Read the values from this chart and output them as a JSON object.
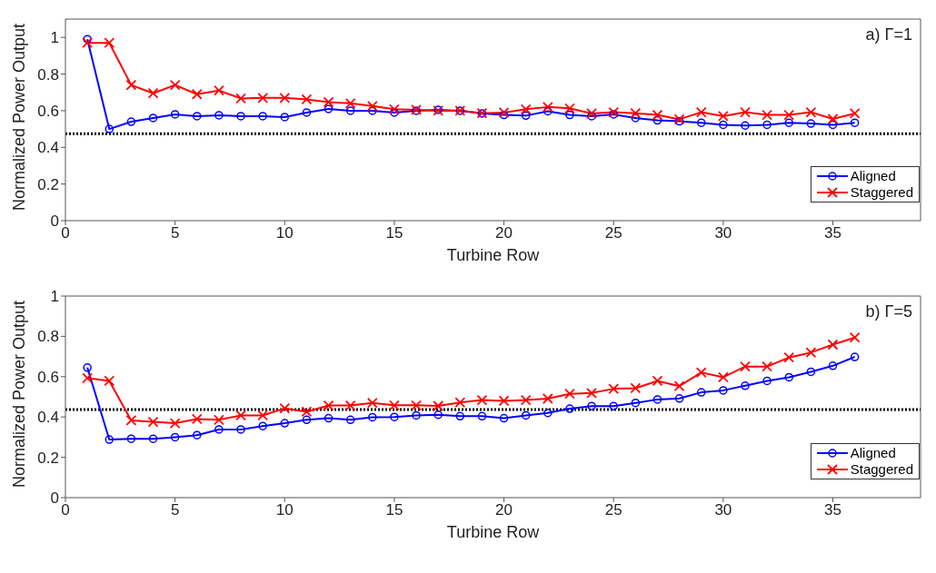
{
  "chart_data": [
    {
      "type": "line",
      "xlabel": "Turbine Row",
      "ylabel": "Normalized Power Output",
      "annotations": [
        "a) Γ=1"
      ],
      "x": [
        1,
        2,
        3,
        4,
        5,
        6,
        7,
        8,
        9,
        10,
        11,
        12,
        13,
        14,
        15,
        16,
        17,
        18,
        19,
        20,
        21,
        22,
        23,
        24,
        25,
        26,
        27,
        28,
        29,
        30,
        31,
        32,
        33,
        34,
        35,
        36
      ],
      "series": [
        {
          "name": "Aligned",
          "color": "#0000ff",
          "marker": "circle",
          "values": [
            0.99,
            0.5,
            0.54,
            0.56,
            0.58,
            0.57,
            0.575,
            0.57,
            0.57,
            0.565,
            0.59,
            0.61,
            0.6,
            0.6,
            0.59,
            0.6,
            0.605,
            0.6,
            0.585,
            0.577,
            0.573,
            0.597,
            0.577,
            0.57,
            0.58,
            0.56,
            0.547,
            0.542,
            0.534,
            0.523,
            0.519,
            0.523,
            0.534,
            0.53,
            0.523,
            0.534
          ]
        },
        {
          "name": "Staggered",
          "color": "#ff0000",
          "marker": "cross",
          "values": [
            0.97,
            0.97,
            0.74,
            0.695,
            0.74,
            0.69,
            0.71,
            0.667,
            0.67,
            0.67,
            0.662,
            0.647,
            0.64,
            0.625,
            0.608,
            0.605,
            0.6,
            0.6,
            0.586,
            0.59,
            0.608,
            0.62,
            0.613,
            0.585,
            0.592,
            0.586,
            0.577,
            0.553,
            0.592,
            0.57,
            0.592,
            0.577,
            0.577,
            0.592,
            0.555,
            0.585
          ]
        }
      ],
      "xlim": [
        0,
        39
      ],
      "xticks": [
        0,
        5,
        10,
        15,
        20,
        25,
        30,
        35
      ],
      "ylim": [
        0,
        1.1
      ],
      "yticks": [
        0,
        0.2,
        0.4,
        0.6,
        0.8,
        1
      ],
      "ref_lines": [
        {
          "axis": "y",
          "value": 0.475,
          "color": "#000000",
          "line_style": "dotted"
        }
      ],
      "grid": false,
      "legend": "bottom right",
      "line_style": "solid"
    },
    {
      "type": "line",
      "xlabel": "Turbine Row",
      "ylabel": "Normalized Power Output",
      "annotations": [
        "b) Γ=5"
      ],
      "x": [
        1,
        2,
        3,
        4,
        5,
        6,
        7,
        8,
        9,
        10,
        11,
        12,
        13,
        14,
        15,
        16,
        17,
        18,
        19,
        20,
        21,
        22,
        23,
        24,
        25,
        26,
        27,
        28,
        29,
        30,
        31,
        32,
        33,
        34,
        35,
        36
      ],
      "series": [
        {
          "name": "Aligned",
          "color": "#0000ff",
          "marker": "circle",
          "values": [
            0.645,
            0.288,
            0.292,
            0.292,
            0.3,
            0.31,
            0.338,
            0.338,
            0.355,
            0.369,
            0.386,
            0.394,
            0.386,
            0.399,
            0.4,
            0.408,
            0.411,
            0.404,
            0.404,
            0.394,
            0.408,
            0.42,
            0.441,
            0.454,
            0.454,
            0.47,
            0.487,
            0.492,
            0.522,
            0.532,
            0.555,
            0.579,
            0.597,
            0.624,
            0.654,
            0.698
          ]
        },
        {
          "name": "Staggered",
          "color": "#ff0000",
          "marker": "cross",
          "values": [
            0.593,
            0.579,
            0.383,
            0.376,
            0.369,
            0.39,
            0.386,
            0.408,
            0.408,
            0.443,
            0.426,
            0.457,
            0.457,
            0.47,
            0.458,
            0.458,
            0.455,
            0.472,
            0.484,
            0.48,
            0.484,
            0.491,
            0.515,
            0.519,
            0.54,
            0.543,
            0.579,
            0.553,
            0.621,
            0.597,
            0.65,
            0.65,
            0.695,
            0.72,
            0.759,
            0.794
          ]
        }
      ],
      "xlim": [
        0,
        39
      ],
      "xticks": [
        0,
        5,
        10,
        15,
        20,
        25,
        30,
        35
      ],
      "ylim": [
        0,
        1
      ],
      "yticks": [
        0,
        0.2,
        0.4,
        0.6,
        0.8,
        1
      ],
      "ref_lines": [
        {
          "axis": "y",
          "value": 0.437,
          "color": "#000000",
          "line_style": "dotted"
        }
      ],
      "grid": false,
      "legend": "bottom right",
      "line_style": "solid"
    }
  ]
}
